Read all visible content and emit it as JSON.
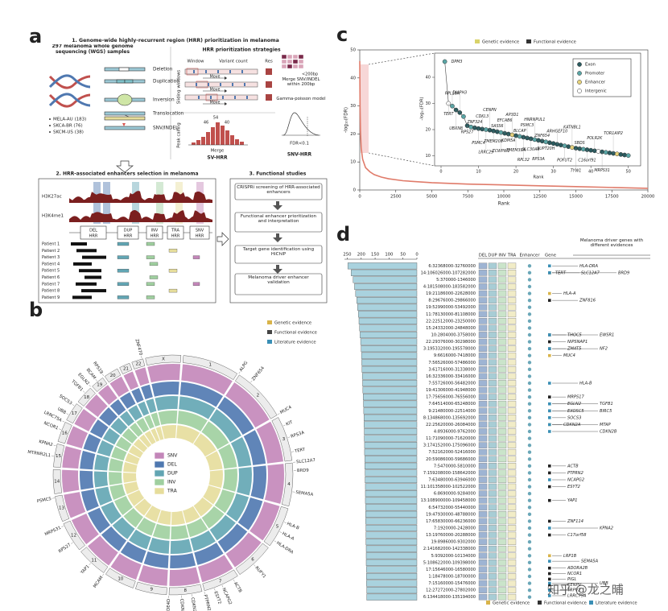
{
  "panel_a": {
    "label": "a",
    "s1_title": "1. Genome-wide highly-recurrent region (HRR) prioritization in melanoma",
    "samples": "297 melanoma whole genome sequencing (WGS) samples",
    "cohorts": [
      "MELA-AU (183)",
      "SKCA-BR (76)",
      "SKCM-US (38)"
    ],
    "variant_types": [
      "Deletion",
      "Duplication",
      "Inversion",
      "Translocation",
      "SNV/INDEL"
    ],
    "strategies_title": "HRR prioritization strategies",
    "window": "Window",
    "variant_count": "Variant count",
    "res": "Res",
    "sliding": "Sliding windows",
    "move": "Move",
    "peak": "Peak calling",
    "peak_labels": [
      "54",
      "46",
      "40"
    ],
    "merge": "Merge",
    "sv_hrr": "SV-HRR",
    "lt200": "<200bp",
    "snv_merge": "Merge SNV/INDEL within 200bp",
    "gamma": "Gamma-poisson model",
    "fdr": "FDR<0.1",
    "snv_hrr": "SNV-HRR",
    "s2_title": "2. HRR-associated enhancers selection in melanoma",
    "tracks": [
      "H3K27ac",
      "H3K4me1"
    ],
    "hrr": [
      "DEL",
      "DUP",
      "INV",
      "TRA",
      "SNV"
    ],
    "hrr_suffix": "HRR",
    "patients": [
      "Patient 1",
      "Patient 2",
      "Patient 3",
      "Patient 4",
      "Patient 5",
      "Patient 6",
      "Patient 7",
      "Patient 8",
      "Patient 9"
    ],
    "s3_title": "3. Functional studies",
    "steps": [
      "CRISPRi screening of HRR-associated enhancers",
      "Functional enhancer prioritization and interpretation",
      "Target gene identification using HiChIP",
      "Melanoma driver enhancer validation"
    ]
  },
  "panel_b": {
    "label": "b",
    "legend": [
      {
        "name": "Genetic evidence",
        "color": "#d9b44a"
      },
      {
        "name": "Functional evidence",
        "color": "#444444"
      },
      {
        "name": "Literature evidence",
        "color": "#3a8fb5"
      }
    ],
    "rings": [
      {
        "name": "SNV",
        "color": "#c386b9"
      },
      {
        "name": "DEL",
        "color": "#4f78b0"
      },
      {
        "name": "DUP",
        "color": "#62a5b3"
      },
      {
        "name": "INV",
        "color": "#9fcf9f"
      },
      {
        "name": "TRA",
        "color": "#e6dd9b"
      }
    ],
    "chromosomes": [
      "1",
      "2",
      "3",
      "4",
      "5",
      "6",
      "7",
      "8",
      "9",
      "10",
      "11",
      "12",
      "13",
      "14",
      "15",
      "16",
      "17",
      "18",
      "19",
      "20",
      "21",
      "22",
      "X"
    ],
    "genes": [
      {
        "name": "TGFB1",
        "color": "#3a8fb5"
      },
      {
        "name": "EGLN2",
        "color": "#3a8fb5"
      },
      {
        "name": "BCAM",
        "color": "#222222"
      },
      {
        "name": "RPS19",
        "color": "#3a8fb5"
      },
      {
        "name": "SOCS3",
        "color": "#222222"
      },
      {
        "name": "UBB",
        "color": "#3a8fb5"
      },
      {
        "name": "LRRC75A",
        "color": "#222222"
      },
      {
        "name": "NCOR1",
        "color": "#222222"
      },
      {
        "name": "KPNA2",
        "color": "#3a8fb5"
      },
      {
        "name": "MTRNR2L1",
        "color": "#222222"
      },
      {
        "name": "PSMC5",
        "color": "#3a8fb5"
      },
      {
        "name": "MRPS31",
        "color": "#d9b44a"
      },
      {
        "name": "RPS27",
        "color": "#d9b44a"
      },
      {
        "name": "YAP1",
        "color": "#222222"
      },
      {
        "name": "MCAM",
        "color": "#3a8fb5"
      },
      {
        "name": "ACTB",
        "color": "#222222"
      },
      {
        "name": "NCAPG2",
        "color": "#222222"
      },
      {
        "name": "ESYT2",
        "color": "#222222"
      },
      {
        "name": "PTPRN2",
        "color": "#3a8fb5"
      },
      {
        "name": "CDKN2B",
        "color": "#3a8fb5"
      },
      {
        "name": "CDKN2A",
        "color": "#3a8fb5"
      },
      {
        "name": "PDE4D",
        "color": "#d9b44a"
      },
      {
        "name": "RUFY1",
        "color": "#222222"
      },
      {
        "name": "HLA-DRA",
        "color": "#3a8fb5"
      },
      {
        "name": "HLA-A",
        "color": "#d9b44a"
      },
      {
        "name": "HLA-B",
        "color": "#222222"
      },
      {
        "name": "SEMA5A",
        "color": "#3a8fb5"
      },
      {
        "name": "BRD9",
        "color": "#3a8fb5"
      },
      {
        "name": "SLC12A7",
        "color": "#222222"
      },
      {
        "name": "TERT",
        "color": "#d9b44a"
      },
      {
        "name": "RPS3A",
        "color": "#d9b44a"
      },
      {
        "name": "KIT",
        "color": "#d9b44a"
      },
      {
        "name": "MUC4",
        "color": "#d9b44a"
      },
      {
        "name": "ZNF654",
        "color": "#222222"
      },
      {
        "name": "ALPG",
        "color": "#d9b44a"
      },
      {
        "name": "ZNF470",
        "color": "#3a8fb5"
      }
    ]
  },
  "panel_c": {
    "label": "c",
    "chart_data": {
      "type": "line",
      "legend": [
        {
          "name": "Genetic evidence",
          "color": "#d9d36a"
        },
        {
          "name": "Functional evidence",
          "color": "#333333"
        }
      ],
      "xlabel": "Rank",
      "ylabel": "-log₁₀(FDR)",
      "x": [
        1,
        20,
        50,
        100,
        200,
        400,
        700,
        1000,
        1500,
        2000,
        3000,
        5000,
        7500,
        10000,
        12500,
        15000,
        17500,
        20000
      ],
      "series": [
        {
          "color": "#e07b6a",
          "values": [
            46,
            30,
            21,
            15,
            11,
            8,
            6.5,
            5.5,
            4.6,
            4,
            3.3,
            2.6,
            2.1,
            1.8,
            1.5,
            1.2,
            0.9,
            0.6
          ]
        }
      ],
      "xlim": [
        0,
        20000
      ],
      "xticks": [
        0,
        2500,
        5000,
        7500,
        10000,
        12500,
        15000,
        17500,
        20000
      ],
      "ylim": [
        0,
        50
      ],
      "yticks": [
        0,
        10,
        20,
        30,
        40,
        50
      ]
    },
    "inset": {
      "type": "scatter",
      "xlabel": "Rank",
      "ylabel": "-log₁₀(FDR)",
      "xlim": [
        0,
        52
      ],
      "xticks": [
        0,
        10,
        20,
        30,
        40,
        50
      ],
      "ylim": [
        8,
        48
      ],
      "yticks": [
        10,
        20,
        30,
        40
      ],
      "legend": [
        {
          "name": "Exon",
          "color": "#2a5a5e"
        },
        {
          "name": "Promoter",
          "color": "#5aa6a6"
        },
        {
          "name": "Enhancer",
          "color": "#e6d27a"
        },
        {
          "name": "Intergenic",
          "color": "#ffffff"
        }
      ],
      "x": [
        1,
        2,
        3,
        4,
        5,
        6,
        7,
        8,
        9,
        10,
        11,
        12,
        13,
        14,
        15,
        16,
        17,
        18,
        19,
        20,
        21,
        22,
        23,
        24,
        25,
        26,
        27,
        28,
        29,
        30,
        31,
        32,
        33,
        34,
        35,
        36,
        37,
        38,
        39,
        40,
        41,
        42,
        43,
        44,
        45,
        46,
        47,
        48,
        49,
        50
      ],
      "values": [
        46,
        30,
        29,
        27.5,
        26.5,
        25,
        21.5,
        21,
        20.7,
        20.4,
        20.2,
        20,
        19.8,
        19.5,
        19.2,
        18.9,
        18.6,
        18.3,
        18,
        17.7,
        17.4,
        17.1,
        16.8,
        16.5,
        16.2,
        15.9,
        15.6,
        15.3,
        15,
        14.7,
        14.4,
        14.1,
        13.8,
        13.5,
        13.2,
        12.9,
        12.7,
        12.5,
        12.3,
        12.1,
        11.9,
        11.7,
        11.5,
        11.3,
        11.1,
        10.9,
        10.7,
        10.5,
        10.3,
        10.1
      ],
      "types": [
        1,
        3,
        1,
        0,
        0,
        1,
        0,
        1,
        0,
        0,
        0,
        1,
        0,
        0,
        0,
        1,
        0,
        0,
        2,
        0,
        1,
        0,
        0,
        0,
        1,
        0,
        0,
        1,
        0,
        0,
        0,
        0,
        1,
        0,
        2,
        0,
        0,
        1,
        0,
        0,
        0,
        3,
        0,
        1,
        0,
        0,
        2,
        0,
        0,
        1
      ],
      "genes": [
        {
          "name": "DPM3",
          "rank": 1,
          "color": "#444444"
        },
        {
          "name": "TERT",
          "rank": 2,
          "color": "#d9b44a"
        },
        {
          "name": "RPL18A",
          "rank": 3,
          "color": "#3a8fb5"
        },
        {
          "name": "UBXN8",
          "rank": 4,
          "color": "#222222"
        },
        {
          "name": "DIAPH3",
          "rank": 5,
          "color": "#222222"
        },
        {
          "name": "RPS27",
          "rank": 7,
          "color": "#d9b44a"
        },
        {
          "name": "ZNF324",
          "rank": 9,
          "color": "#222222"
        },
        {
          "name": "PSMC4",
          "rank": 10,
          "color": "#3a8fb5"
        },
        {
          "name": "CDKL3",
          "rank": 11,
          "color": "#222222"
        },
        {
          "name": "LRRC29",
          "rank": 12,
          "color": "#222222"
        },
        {
          "name": "CENPN",
          "rank": 13,
          "color": "#222222"
        },
        {
          "name": "TMEM208",
          "rank": 14,
          "color": "#222222"
        },
        {
          "name": "SASS6",
          "rank": 15,
          "color": "#222222"
        },
        {
          "name": "ZCWPW1",
          "rank": 16,
          "color": "#3a8fb5"
        },
        {
          "name": "EFCAB6",
          "rank": 17,
          "color": "#222222"
        },
        {
          "name": "KDM5A",
          "rank": 18,
          "color": "#d9b44a"
        },
        {
          "name": "AP3D1",
          "rank": 19,
          "color": "#222222"
        },
        {
          "name": "TMEM39A",
          "rank": 20,
          "color": "#222222"
        },
        {
          "name": "BLCAP",
          "rank": 21,
          "color": "#d9b44a"
        },
        {
          "name": "RPL32",
          "rank": 22,
          "color": "#222222"
        },
        {
          "name": "PSMC3",
          "rank": 23,
          "color": "#222222"
        },
        {
          "name": "SLC30A6",
          "rank": 24,
          "color": "#222222"
        },
        {
          "name": "HNRNPUL1",
          "rank": 25,
          "color": "#222222"
        },
        {
          "name": "RPS3A",
          "rank": 26,
          "color": "#3a8fb5"
        },
        {
          "name": "ZNF654",
          "rank": 27,
          "color": "#3a8fb5"
        },
        {
          "name": "SUPT20H",
          "rank": 28,
          "color": "#222222"
        },
        {
          "name": "ARHGEF10",
          "rank": 31,
          "color": "#222222"
        },
        {
          "name": "POFUT2",
          "rank": 33,
          "color": "#222222"
        },
        {
          "name": "KATNBL1",
          "rank": 35,
          "color": "#222222"
        },
        {
          "name": "TYW1",
          "rank": 36,
          "color": "#222222"
        },
        {
          "name": "SBDS",
          "rank": 37,
          "color": "#222222"
        },
        {
          "name": "C16orf91",
          "rank": 39,
          "color": "#222222"
        },
        {
          "name": "POLR2K",
          "rank": 41,
          "color": "#222222"
        },
        {
          "name": "MRPS31",
          "rank": 43,
          "color": "#d9b44a"
        },
        {
          "name": "TOR1AIP2",
          "rank": 46,
          "color": "#222222"
        }
      ]
    }
  },
  "panel_d": {
    "label": "d",
    "chart_data": {
      "type": "bar",
      "orientation": "horizontal",
      "categories": [
        "6:32368000-32760000",
        "14:106026000-107282000",
        "5:370000-1346000",
        "4:181508000-183582000",
        "19:21186000-22628000",
        "8:29676000-29866000",
        "19:52990000-53492000",
        "11:78130000-81108000",
        "22:22512000-23250000",
        "15:24332000-24848000",
        "10:2804000-3758000",
        "22:29376000-30298000",
        "3:195332000-195578000",
        "9:6616000-7418000",
        "7:56526000-57486000",
        "3:61716000-31338000",
        "16:32336000-33416000",
        "7:55726000-56482000",
        "19:41306000-41948000",
        "17:75656000-76556000",
        "7:64514000-65248000",
        "9:21480000-22514000",
        "8:134868000-135692000",
        "22:25620000-26084000",
        "4:8936000-9762000",
        "11:71090000-71620000",
        "3:174152000-175096000",
        "7:52162000-52416000",
        "20:59086000-59686000",
        "7:5470000-5810000",
        "7:159208000-158642000",
        "7:63480000-63946000",
        "11:101358000-102522000",
        "6:8690000-9284000",
        "13:108900000-109458000",
        "6:54732000-55440000",
        "19:47930000-48788000",
        "17:65830000-66236000",
        "7:1920000-2428000",
        "13:19760000-20288000",
        "19:8986000-9302000",
        "2:141682000-142338000",
        "5:9392000-10134000",
        "5:108622000-109398000",
        "17:15646000-16580000",
        "1:18478000-18700000",
        "7:15160000-15476000",
        "12:27272000-27802000",
        "6:134418000-135194000"
      ],
      "values": [
        248,
        236,
        229,
        224,
        220,
        216,
        213,
        210,
        208,
        206,
        204,
        202,
        200,
        199,
        198,
        197,
        196,
        195,
        194,
        193,
        192,
        191,
        190,
        190,
        189,
        189,
        188,
        188,
        187,
        187,
        186,
        186,
        185,
        185,
        185,
        184,
        184,
        184,
        183,
        183,
        183,
        182,
        182,
        182,
        181,
        181,
        181,
        180,
        180
      ],
      "color": "#a9d2de",
      "xlim": [
        260,
        0
      ],
      "xticks": [
        250,
        200,
        150,
        100,
        50,
        0
      ]
    },
    "columns": [
      {
        "name": "DEL",
        "color": "#4f78b0"
      },
      {
        "name": "DUP",
        "color": "#62a5b3"
      },
      {
        "name": "INV",
        "color": "#9fcf9f"
      },
      {
        "name": "TRA",
        "color": "#e6dd9b"
      }
    ],
    "enhancer": "Enhancer",
    "gene": "Gene",
    "title": "Melanoma driver genes with different evidences",
    "legend": [
      {
        "name": "Genetic evidence",
        "color": "#d9b44a"
      },
      {
        "name": "Functional evidence",
        "color": "#333333"
      },
      {
        "name": "Literature evidence",
        "color": "#3a8fb5"
      }
    ],
    "genes": [
      {
        "name": "HLA-DRA",
        "color": "#3a8fb5"
      },
      {
        "name": "TERT",
        "color": "#d9b44a"
      },
      {
        "name": "SLC12A7",
        "color": "#222222"
      },
      {
        "name": "BRD9",
        "color": "#3a8fb5"
      },
      {
        "name": "HLA-A",
        "color": "#d9b44a"
      },
      {
        "name": "ZNF816",
        "color": "#222222"
      },
      {
        "name": "THOC5",
        "color": "#222222"
      },
      {
        "name": "NIPSNAP1",
        "color": "#222222"
      },
      {
        "name": "ZMAT5",
        "color": "#222222"
      },
      {
        "name": "EWSR1",
        "color": "#3a8fb5"
      },
      {
        "name": "NF2",
        "color": "#3a8fb5"
      },
      {
        "name": "MUC4",
        "color": "#d9b44a"
      },
      {
        "name": "HLA-B",
        "color": "#3a8fb5"
      },
      {
        "name": "MRPS17",
        "color": "#222222"
      },
      {
        "name": "EGLN2",
        "color": "#3a8fb5"
      },
      {
        "name": "EXOSC5",
        "color": "#222222"
      },
      {
        "name": "SOCS3",
        "color": "#3a8fb5"
      },
      {
        "name": "TGFB1",
        "color": "#3a8fb5"
      },
      {
        "name": "BIRC5",
        "color": "#3a8fb5"
      },
      {
        "name": "CDKN2A",
        "color": "#d9b44a"
      },
      {
        "name": "MTAP",
        "color": "#3a8fb5"
      },
      {
        "name": "CDKN2B",
        "color": "#3a8fb5"
      },
      {
        "name": "ACTB",
        "color": "#222222"
      },
      {
        "name": "PTPRN2",
        "color": "#222222"
      },
      {
        "name": "NCAPG2",
        "color": "#3a8fb5"
      },
      {
        "name": "ESYT2",
        "color": "#222222"
      },
      {
        "name": "YAP1",
        "color": "#222222"
      },
      {
        "name": "ZNF114",
        "color": "#222222"
      },
      {
        "name": "C17orf58",
        "color": "#222222"
      },
      {
        "name": "KPNA2",
        "color": "#3a8fb5"
      },
      {
        "name": "LRP1B",
        "color": "#d9b44a"
      },
      {
        "name": "SEMA5A",
        "color": "#3a8fb5"
      },
      {
        "name": "ADORA2B",
        "color": "#222222"
      },
      {
        "name": "NCOR1",
        "color": "#222222"
      },
      {
        "name": "PIGL",
        "color": "#222222"
      },
      {
        "name": "CENPV",
        "color": "#222222"
      },
      {
        "name": "TRPV2",
        "color": "#3a8fb5"
      },
      {
        "name": "LRRC75A",
        "color": "#3a8fb5"
      },
      {
        "name": "UBB",
        "color": "#3a8fb5"
      }
    ]
  },
  "watermark": "知乎 @龙之晡"
}
